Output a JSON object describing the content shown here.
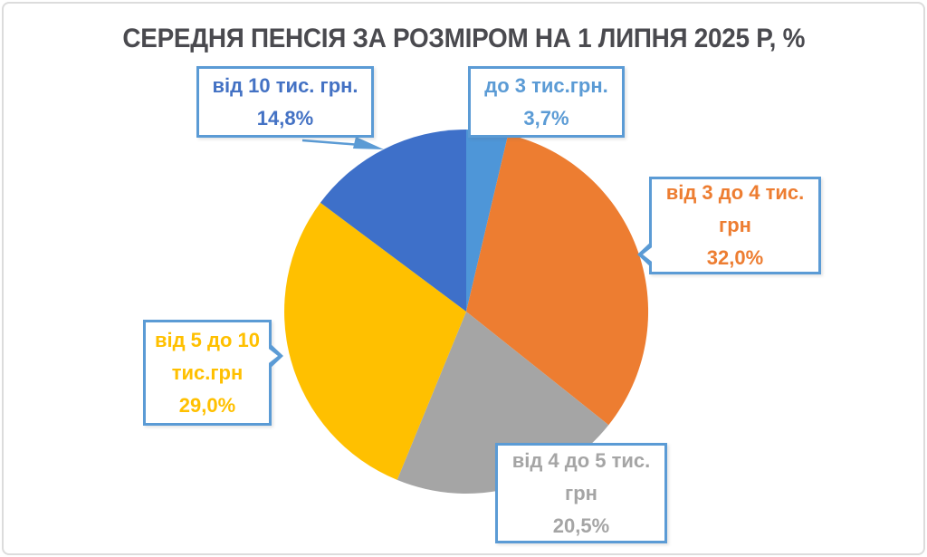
{
  "title": "СЕРЕДНЯ ПЕНСІЯ ЗА РОЗМІРОМ НА 1 ЛИПНЯ 2025 Р, %",
  "chart_data": {
    "type": "pie",
    "title": "СЕРЕДНЯ ПЕНСІЯ ЗА РОЗМІРОМ НА 1 ЛИПНЯ 2025 Р, %",
    "unit": "%",
    "start_angle_deg": 0,
    "direction": "clockwise",
    "legend": "none",
    "labels_style": "callout boxes with category name and percent",
    "total": 100,
    "slices": [
      {
        "label": "до 3 тис.грн.",
        "value": 3.7,
        "percent_text": "3,7%",
        "color": "#4E96D8"
      },
      {
        "label": "від 3 до 4 тис. грн",
        "value": 32.0,
        "percent_text": "32,0%",
        "color": "#ED7D31"
      },
      {
        "label": "від 4 до 5 тис. грн",
        "value": 20.5,
        "percent_text": "20,5%",
        "color": "#A5A5A5"
      },
      {
        "label": "від 5 до 10 тис.грн",
        "value": 29.0,
        "percent_text": "29,0%",
        "color": "#FFC000"
      },
      {
        "label": "від 10 тис. грн.",
        "value": 14.8,
        "percent_text": "14,8%",
        "color": "#3E70C9"
      }
    ]
  },
  "callouts": {
    "over10": {
      "lines": [
        "від 10 тис. грн.",
        "14,8%"
      ],
      "text_color": "#4472C4"
    },
    "under3": {
      "lines": [
        "до 3 тис.грн.",
        "3,7%"
      ],
      "text_color": "#5B9BD5"
    },
    "from3to4": {
      "lines": [
        "від 3 до 4 тис.",
        "грн",
        "32,0%"
      ],
      "text_color": "#ED7D31"
    },
    "from5to10": {
      "lines": [
        "від 5 до 10",
        "тис.грн",
        "29,0%"
      ],
      "text_color": "#FFC000"
    },
    "from4to5": {
      "lines": [
        "від 4 до 5 тис.",
        "грн",
        "20,5%"
      ],
      "text_color": "#A5A5A5"
    }
  },
  "colors": {
    "callout_border": "#5B9BD5",
    "title_color": "#4A4A4F",
    "background": "#FFFFFF",
    "frame_border": "#DCDCDC",
    "leader_line": "#5B9BD5"
  }
}
